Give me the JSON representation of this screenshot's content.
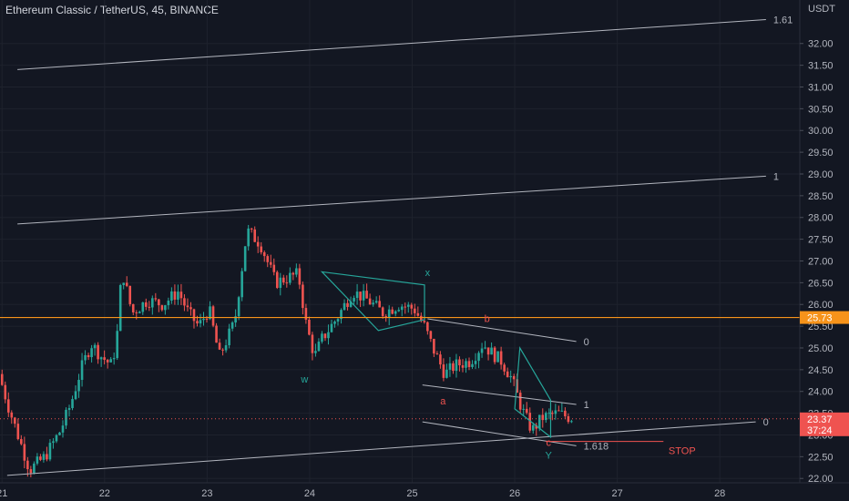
{
  "chart_data": {
    "type": "candlestick",
    "title": "Ethereum Classic / TetherUS, 45, BINANCE",
    "currency": "USDT",
    "y_ticks": [
      "32.00",
      "31.50",
      "31.00",
      "30.50",
      "30.00",
      "29.50",
      "29.00",
      "28.50",
      "28.00",
      "27.50",
      "27.00",
      "26.50",
      "26.00",
      "25.50",
      "25.00",
      "24.50",
      "24.00",
      "23.50",
      "23.00",
      "22.50",
      "22.00"
    ],
    "y_range": [
      21.9,
      33.0
    ],
    "x_range": [
      20.98,
      28.78
    ],
    "x_ticks": [
      {
        "v": 21,
        "label": "21"
      },
      {
        "v": 22,
        "label": "22"
      },
      {
        "v": 23,
        "label": "23"
      },
      {
        "v": 24,
        "label": "24"
      },
      {
        "v": 25,
        "label": "25"
      },
      {
        "v": 26,
        "label": "26"
      },
      {
        "v": 27,
        "label": "27"
      },
      {
        "v": 28,
        "label": "28"
      }
    ],
    "path": [
      [
        21.0,
        24.4
      ],
      [
        21.1,
        23.6
      ],
      [
        21.2,
        22.9
      ],
      [
        21.3,
        22.2
      ],
      [
        21.45,
        22.5
      ],
      [
        21.6,
        23.1
      ],
      [
        21.7,
        23.7
      ],
      [
        21.8,
        24.5
      ],
      [
        21.9,
        25.1
      ],
      [
        22.0,
        24.8
      ],
      [
        22.1,
        24.6
      ],
      [
        22.15,
        25.2
      ],
      [
        22.2,
        26.8
      ],
      [
        22.3,
        25.8
      ],
      [
        22.45,
        26.1
      ],
      [
        22.6,
        26.0
      ],
      [
        22.75,
        26.3
      ],
      [
        22.85,
        25.8
      ],
      [
        22.95,
        25.5
      ],
      [
        23.05,
        25.9
      ],
      [
        23.15,
        24.8
      ],
      [
        23.3,
        25.6
      ],
      [
        23.42,
        27.7
      ],
      [
        23.55,
        27.4
      ],
      [
        23.7,
        26.5
      ],
      [
        23.8,
        26.6
      ],
      [
        23.92,
        26.7
      ],
      [
        24.0,
        25.5
      ],
      [
        24.08,
        24.8
      ],
      [
        24.15,
        25.2
      ],
      [
        24.3,
        25.7
      ],
      [
        24.45,
        26.3
      ],
      [
        24.6,
        26.1
      ],
      [
        24.75,
        25.8
      ],
      [
        24.9,
        26.0
      ],
      [
        25.05,
        25.9
      ],
      [
        25.15,
        25.5
      ],
      [
        25.25,
        24.9
      ],
      [
        25.35,
        24.4
      ],
      [
        25.45,
        24.6
      ],
      [
        25.6,
        24.7
      ],
      [
        25.72,
        25.1
      ],
      [
        25.8,
        24.9
      ],
      [
        25.9,
        24.7
      ],
      [
        26.0,
        24.3
      ],
      [
        26.1,
        23.6
      ],
      [
        26.2,
        23.1
      ],
      [
        26.3,
        23.4
      ],
      [
        26.45,
        23.5
      ],
      [
        26.57,
        23.4
      ]
    ],
    "last_price": "23.37",
    "countdown": "37:24",
    "horizontal_level": {
      "value": 25.7,
      "label": "25.73",
      "color": "#f7931a"
    },
    "current_price_line": 23.37,
    "bull_color": "#26a69a",
    "bear_color": "#ef5350",
    "fib_lines": [
      {
        "x1": 21.15,
        "y1": 31.4,
        "x2": 28.45,
        "y2": 32.55,
        "label": "1.61",
        "color": "#b2b5be"
      },
      {
        "x1": 21.15,
        "y1": 27.85,
        "x2": 28.45,
        "y2": 28.95,
        "label": "1",
        "color": "#b2b5be"
      },
      {
        "x1": 21.05,
        "y1": 22.07,
        "x2": 28.35,
        "y2": 23.3,
        "label": "0",
        "color": "#b2b5be"
      },
      {
        "x1": 25.15,
        "y1": 25.67,
        "x2": 26.6,
        "y2": 25.15,
        "label": "0",
        "color": "#b2b5be"
      },
      {
        "x1": 25.1,
        "y1": 24.15,
        "x2": 26.6,
        "y2": 23.7,
        "label": "1",
        "color": "#b2b5be"
      },
      {
        "x1": 25.1,
        "y1": 23.3,
        "x2": 26.6,
        "y2": 22.75,
        "label": "1.618",
        "color": "#b2b5be"
      }
    ],
    "triangles": [
      {
        "points": [
          [
            24.12,
            26.75
          ],
          [
            25.12,
            26.45
          ],
          [
            25.12,
            25.65
          ],
          [
            24.67,
            25.4
          ]
        ],
        "color": "#26a69a"
      },
      {
        "points": [
          [
            26.05,
            25.0
          ],
          [
            26.35,
            23.8
          ],
          [
            26.35,
            22.95
          ],
          [
            26.0,
            23.6
          ]
        ],
        "color": "#26a69a"
      }
    ],
    "stop": {
      "y": 22.85,
      "x1": 26.3,
      "x2": 27.45,
      "label": "STOP",
      "label_x": 27.5,
      "color": "#ef5350"
    },
    "annotations": [
      {
        "text": "x",
        "x": 25.15,
        "y": 26.65,
        "color": "#26a69a"
      },
      {
        "text": "w",
        "x": 23.95,
        "y": 24.2,
        "color": "#26a69a"
      },
      {
        "text": "Y",
        "x": 26.33,
        "y": 22.45,
        "color": "#26a69a"
      },
      {
        "text": "b",
        "x": 25.73,
        "y": 25.6,
        "color": "#ef5350"
      },
      {
        "text": "a",
        "x": 25.3,
        "y": 23.7,
        "color": "#ef5350"
      },
      {
        "text": "c",
        "x": 26.33,
        "y": 22.75,
        "color": "#ef5350"
      }
    ]
  }
}
